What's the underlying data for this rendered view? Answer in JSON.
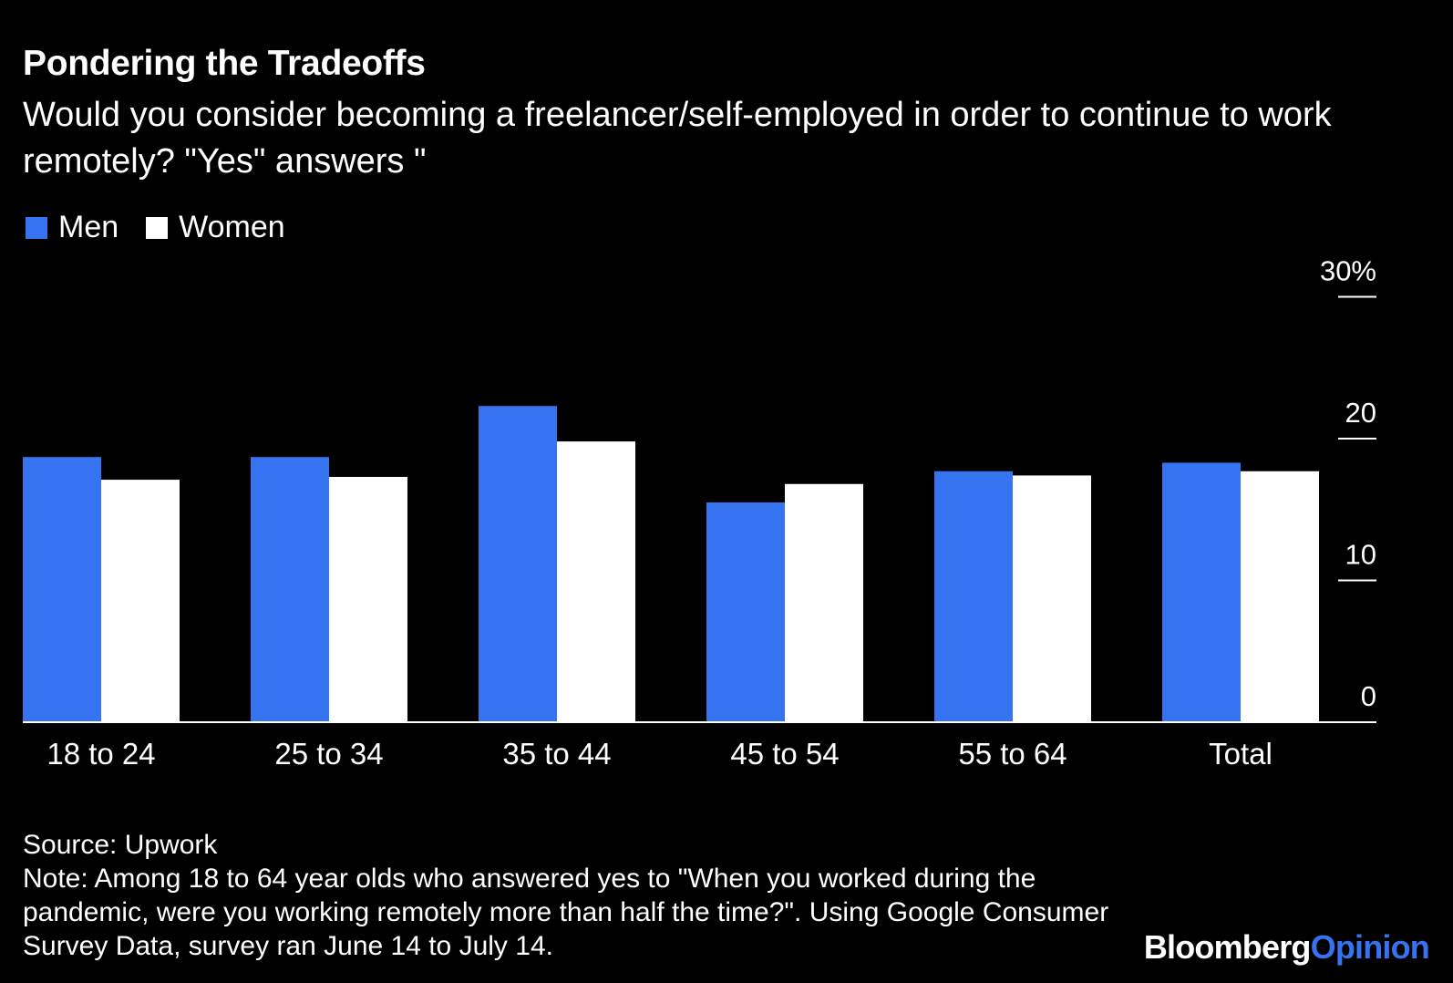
{
  "title": "Pondering the Tradeoffs",
  "subtitle": "Would you consider becoming a freelancer/self-employed in order to continue to work remotely? \"Yes\" answers \"",
  "legend": {
    "men": "Men",
    "women": "Women"
  },
  "colors": {
    "men": "#3573f0",
    "women": "#ffffff",
    "background": "#000000"
  },
  "chart_data": {
    "type": "bar",
    "categories": [
      "18 to 24",
      "25 to 34",
      "35 to 44",
      "45 to 54",
      "55 to 64",
      "Total"
    ],
    "series": [
      {
        "name": "Men",
        "values": [
          18.7,
          18.7,
          22.3,
          15.5,
          17.7,
          18.3
        ]
      },
      {
        "name": "Women",
        "values": [
          17.1,
          17.3,
          19.8,
          16.8,
          17.4,
          17.7
        ]
      }
    ],
    "ylim": [
      0,
      30
    ],
    "yticks": [
      0,
      10,
      20,
      30
    ],
    "ytick_labels": [
      "0",
      "10",
      "20",
      "30%"
    ],
    "yaxis_side": "right",
    "grid": false
  },
  "source": "Source: Upwork",
  "note": "Note: Among 18 to 64 year olds who answered yes to \"When you worked during the pandemic, were you working remotely more than half the time?\". Using Google Consumer Survey Data, survey ran June 14 to July 14.",
  "logo": {
    "brand": "Bloomberg",
    "accent": "Opinion"
  }
}
